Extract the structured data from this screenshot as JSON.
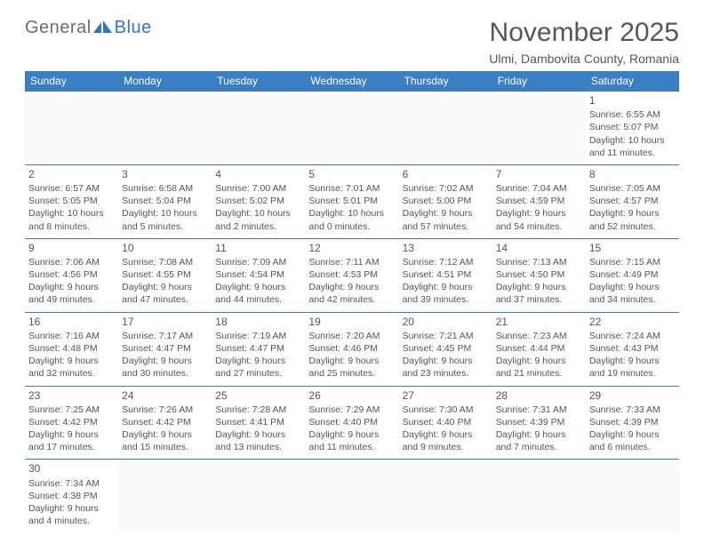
{
  "logo": {
    "text1": "General",
    "text2": "Blue"
  },
  "header": {
    "title": "November 2025",
    "subtitle": "Ulmi, Dambovita County, Romania"
  },
  "colors": {
    "header_bg": "#3a7fc3",
    "header_fg": "#ffffff",
    "border": "#3a7fc3",
    "text": "#555555",
    "title": "#565656",
    "logo_gray": "#6d6d6d",
    "logo_blue": "#2f78bd"
  },
  "weekdays": [
    "Sunday",
    "Monday",
    "Tuesday",
    "Wednesday",
    "Thursday",
    "Friday",
    "Saturday"
  ],
  "weeks": [
    [
      null,
      null,
      null,
      null,
      null,
      null,
      {
        "n": "1",
        "sr": "Sunrise: 6:55 AM",
        "ss": "Sunset: 5:07 PM",
        "d1": "Daylight: 10 hours",
        "d2": "and 11 minutes."
      }
    ],
    [
      {
        "n": "2",
        "sr": "Sunrise: 6:57 AM",
        "ss": "Sunset: 5:05 PM",
        "d1": "Daylight: 10 hours",
        "d2": "and 8 minutes."
      },
      {
        "n": "3",
        "sr": "Sunrise: 6:58 AM",
        "ss": "Sunset: 5:04 PM",
        "d1": "Daylight: 10 hours",
        "d2": "and 5 minutes."
      },
      {
        "n": "4",
        "sr": "Sunrise: 7:00 AM",
        "ss": "Sunset: 5:02 PM",
        "d1": "Daylight: 10 hours",
        "d2": "and 2 minutes."
      },
      {
        "n": "5",
        "sr": "Sunrise: 7:01 AM",
        "ss": "Sunset: 5:01 PM",
        "d1": "Daylight: 10 hours",
        "d2": "and 0 minutes."
      },
      {
        "n": "6",
        "sr": "Sunrise: 7:02 AM",
        "ss": "Sunset: 5:00 PM",
        "d1": "Daylight: 9 hours",
        "d2": "and 57 minutes."
      },
      {
        "n": "7",
        "sr": "Sunrise: 7:04 AM",
        "ss": "Sunset: 4:59 PM",
        "d1": "Daylight: 9 hours",
        "d2": "and 54 minutes."
      },
      {
        "n": "8",
        "sr": "Sunrise: 7:05 AM",
        "ss": "Sunset: 4:57 PM",
        "d1": "Daylight: 9 hours",
        "d2": "and 52 minutes."
      }
    ],
    [
      {
        "n": "9",
        "sr": "Sunrise: 7:06 AM",
        "ss": "Sunset: 4:56 PM",
        "d1": "Daylight: 9 hours",
        "d2": "and 49 minutes."
      },
      {
        "n": "10",
        "sr": "Sunrise: 7:08 AM",
        "ss": "Sunset: 4:55 PM",
        "d1": "Daylight: 9 hours",
        "d2": "and 47 minutes."
      },
      {
        "n": "11",
        "sr": "Sunrise: 7:09 AM",
        "ss": "Sunset: 4:54 PM",
        "d1": "Daylight: 9 hours",
        "d2": "and 44 minutes."
      },
      {
        "n": "12",
        "sr": "Sunrise: 7:11 AM",
        "ss": "Sunset: 4:53 PM",
        "d1": "Daylight: 9 hours",
        "d2": "and 42 minutes."
      },
      {
        "n": "13",
        "sr": "Sunrise: 7:12 AM",
        "ss": "Sunset: 4:51 PM",
        "d1": "Daylight: 9 hours",
        "d2": "and 39 minutes."
      },
      {
        "n": "14",
        "sr": "Sunrise: 7:13 AM",
        "ss": "Sunset: 4:50 PM",
        "d1": "Daylight: 9 hours",
        "d2": "and 37 minutes."
      },
      {
        "n": "15",
        "sr": "Sunrise: 7:15 AM",
        "ss": "Sunset: 4:49 PM",
        "d1": "Daylight: 9 hours",
        "d2": "and 34 minutes."
      }
    ],
    [
      {
        "n": "16",
        "sr": "Sunrise: 7:16 AM",
        "ss": "Sunset: 4:48 PM",
        "d1": "Daylight: 9 hours",
        "d2": "and 32 minutes."
      },
      {
        "n": "17",
        "sr": "Sunrise: 7:17 AM",
        "ss": "Sunset: 4:47 PM",
        "d1": "Daylight: 9 hours",
        "d2": "and 30 minutes."
      },
      {
        "n": "18",
        "sr": "Sunrise: 7:19 AM",
        "ss": "Sunset: 4:47 PM",
        "d1": "Daylight: 9 hours",
        "d2": "and 27 minutes."
      },
      {
        "n": "19",
        "sr": "Sunrise: 7:20 AM",
        "ss": "Sunset: 4:46 PM",
        "d1": "Daylight: 9 hours",
        "d2": "and 25 minutes."
      },
      {
        "n": "20",
        "sr": "Sunrise: 7:21 AM",
        "ss": "Sunset: 4:45 PM",
        "d1": "Daylight: 9 hours",
        "d2": "and 23 minutes."
      },
      {
        "n": "21",
        "sr": "Sunrise: 7:23 AM",
        "ss": "Sunset: 4:44 PM",
        "d1": "Daylight: 9 hours",
        "d2": "and 21 minutes."
      },
      {
        "n": "22",
        "sr": "Sunrise: 7:24 AM",
        "ss": "Sunset: 4:43 PM",
        "d1": "Daylight: 9 hours",
        "d2": "and 19 minutes."
      }
    ],
    [
      {
        "n": "23",
        "sr": "Sunrise: 7:25 AM",
        "ss": "Sunset: 4:42 PM",
        "d1": "Daylight: 9 hours",
        "d2": "and 17 minutes."
      },
      {
        "n": "24",
        "sr": "Sunrise: 7:26 AM",
        "ss": "Sunset: 4:42 PM",
        "d1": "Daylight: 9 hours",
        "d2": "and 15 minutes."
      },
      {
        "n": "25",
        "sr": "Sunrise: 7:28 AM",
        "ss": "Sunset: 4:41 PM",
        "d1": "Daylight: 9 hours",
        "d2": "and 13 minutes."
      },
      {
        "n": "26",
        "sr": "Sunrise: 7:29 AM",
        "ss": "Sunset: 4:40 PM",
        "d1": "Daylight: 9 hours",
        "d2": "and 11 minutes."
      },
      {
        "n": "27",
        "sr": "Sunrise: 7:30 AM",
        "ss": "Sunset: 4:40 PM",
        "d1": "Daylight: 9 hours",
        "d2": "and 9 minutes."
      },
      {
        "n": "28",
        "sr": "Sunrise: 7:31 AM",
        "ss": "Sunset: 4:39 PM",
        "d1": "Daylight: 9 hours",
        "d2": "and 7 minutes."
      },
      {
        "n": "29",
        "sr": "Sunrise: 7:33 AM",
        "ss": "Sunset: 4:39 PM",
        "d1": "Daylight: 9 hours",
        "d2": "and 6 minutes."
      }
    ],
    [
      {
        "n": "30",
        "sr": "Sunrise: 7:34 AM",
        "ss": "Sunset: 4:38 PM",
        "d1": "Daylight: 9 hours",
        "d2": "and 4 minutes."
      },
      null,
      null,
      null,
      null,
      null,
      null
    ]
  ]
}
